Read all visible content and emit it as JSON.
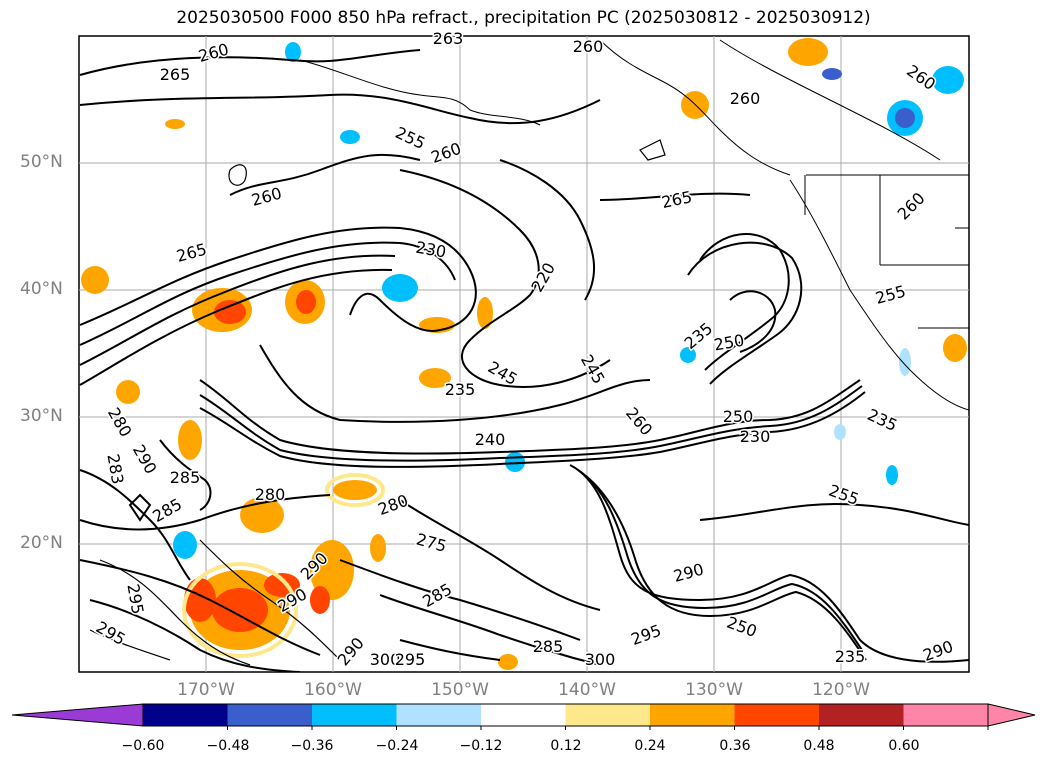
{
  "title": "2025030500 F000 850 hPa refract., precipitation PC (2025030812 - 2025030912)",
  "map": {
    "lat_labels": [
      "50°N",
      "40°N",
      "30°N",
      "20°N"
    ],
    "lon_labels": [
      "170°W",
      "160°W",
      "150°W",
      "140°W",
      "130°W",
      "120°W"
    ],
    "contour_labels": [
      "260",
      "265",
      "263",
      "260",
      "260",
      "260",
      "255",
      "260",
      "265",
      "260",
      "265",
      "260",
      "255",
      "230",
      "220",
      "245",
      "235",
      "245",
      "235",
      "240",
      "250",
      "230",
      "250",
      "235",
      "255",
      "280",
      "290",
      "285",
      "283",
      "280",
      "295",
      "285",
      "280",
      "275",
      "290",
      "285",
      "290",
      "295",
      "300",
      "290",
      "295",
      "285",
      "300",
      "295",
      "250",
      "290",
      "260",
      "235",
      "290"
    ]
  },
  "colorbar": {
    "ticks": [
      "−0.60",
      "−0.48",
      "−0.36",
      "−0.24",
      "−0.12",
      "0.12",
      "0.24",
      "0.36",
      "0.48",
      "0.60"
    ],
    "colors": [
      "#9a3bd6",
      "#00008b",
      "#3a5fcd",
      "#00bfff",
      "#b0e2ff",
      "#ffffff",
      "#ffe88c",
      "#ffa500",
      "#ff4500",
      "#b22222",
      "#ff85a8",
      "#ff85a8"
    ]
  }
}
